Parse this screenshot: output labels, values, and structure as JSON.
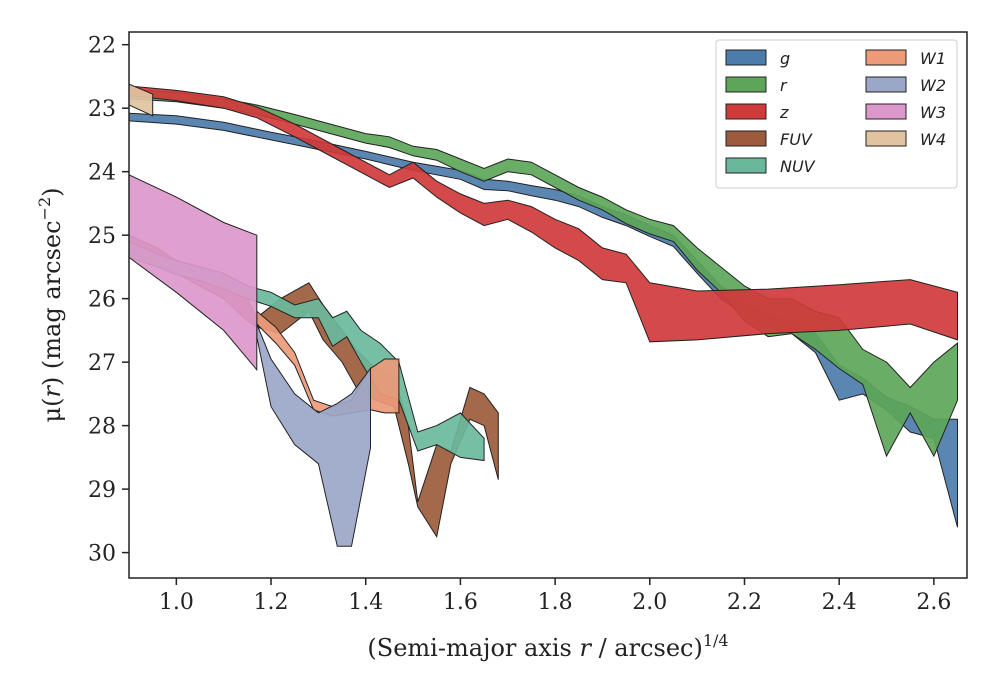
{
  "chart_data": {
    "type": "area",
    "title": "",
    "xlabel_main": "(Semi-major axis ",
    "xlabel_var": "r",
    "xlabel_rest": " / arcsec)",
    "xlabel_sup": "1/4",
    "ylabel_main": "μ(",
    "ylabel_var": "r",
    "ylabel_rest": ") (mag arcsec",
    "ylabel_sup": "−2",
    "ylabel_close": ")",
    "xlim": [
      0.9,
      2.67
    ],
    "ylim": [
      30.4,
      21.8
    ],
    "y_inverted": true,
    "x_ticks": [
      1.0,
      1.2,
      1.4,
      1.6,
      1.8,
      2.0,
      2.2,
      2.4,
      2.6
    ],
    "x_tick_labels": [
      "1.0",
      "1.2",
      "1.4",
      "1.6",
      "1.8",
      "2.0",
      "2.2",
      "2.4",
      "2.6"
    ],
    "y_ticks": [
      22,
      23,
      24,
      25,
      26,
      27,
      28,
      29,
      30
    ],
    "y_tick_labels": [
      "22",
      "23",
      "24",
      "25",
      "26",
      "27",
      "28",
      "29",
      "30"
    ],
    "grid": false,
    "legend_position": "top-right",
    "legend_columns": 2,
    "series": [
      {
        "name": "g",
        "color": "#4c7caa",
        "x": [
          0.9,
          1.0,
          1.1,
          1.2,
          1.3,
          1.4,
          1.5,
          1.6,
          1.65,
          1.7,
          1.75,
          1.8,
          1.85,
          1.9,
          1.95,
          2.0,
          2.05,
          2.1,
          2.15,
          2.2,
          2.25,
          2.3,
          2.35,
          2.4,
          2.45,
          2.5,
          2.55,
          2.6,
          2.65
        ],
        "lo": [
          23.08,
          23.12,
          23.22,
          23.38,
          23.52,
          23.68,
          23.85,
          23.98,
          24.12,
          24.15,
          24.22,
          24.28,
          24.38,
          24.55,
          24.68,
          24.85,
          25.0,
          25.4,
          25.8,
          26.05,
          26.25,
          26.35,
          26.55,
          27.05,
          27.25,
          27.55,
          27.7,
          27.9,
          27.9
        ],
        "hi": [
          23.2,
          23.25,
          23.35,
          23.5,
          23.65,
          23.8,
          23.98,
          24.12,
          24.28,
          24.3,
          24.38,
          24.45,
          24.55,
          24.72,
          24.85,
          25.02,
          25.18,
          25.6,
          26.0,
          26.25,
          26.45,
          26.55,
          26.85,
          27.6,
          27.5,
          27.75,
          28.1,
          28.2,
          29.6
        ]
      },
      {
        "name": "r",
        "color": "#5da659",
        "x": [
          0.9,
          1.0,
          1.1,
          1.17,
          1.25,
          1.3,
          1.4,
          1.45,
          1.5,
          1.55,
          1.6,
          1.65,
          1.7,
          1.75,
          1.8,
          1.85,
          1.9,
          1.95,
          2.0,
          2.05,
          2.1,
          2.15,
          2.2,
          2.25,
          2.3,
          2.35,
          2.4,
          2.45,
          2.5,
          2.55,
          2.6,
          2.65
        ],
        "lo": [
          22.7,
          22.75,
          22.85,
          22.95,
          23.1,
          23.2,
          23.4,
          23.45,
          23.6,
          23.65,
          23.8,
          23.95,
          23.8,
          23.85,
          24.05,
          24.25,
          24.4,
          24.6,
          24.75,
          24.85,
          25.2,
          25.5,
          25.8,
          26.0,
          26.0,
          26.2,
          26.3,
          26.8,
          27.0,
          27.4,
          27.0,
          26.7
        ],
        "hi": [
          22.85,
          22.9,
          23.0,
          23.1,
          23.25,
          23.35,
          23.55,
          23.62,
          23.75,
          23.82,
          24.0,
          24.15,
          24.0,
          24.05,
          24.25,
          24.45,
          24.6,
          24.82,
          24.98,
          25.1,
          25.55,
          25.9,
          26.35,
          26.6,
          26.55,
          26.8,
          27.1,
          27.35,
          28.48,
          27.8,
          28.48,
          27.6
        ]
      },
      {
        "name": "z",
        "color": "#d03a3a",
        "x": [
          0.9,
          1.0,
          1.1,
          1.17,
          1.25,
          1.3,
          1.35,
          1.4,
          1.45,
          1.5,
          1.55,
          1.6,
          1.65,
          1.7,
          1.75,
          1.8,
          1.85,
          1.9,
          1.95,
          2.0,
          2.1,
          2.25,
          2.4,
          2.55,
          2.65
        ],
        "lo": [
          22.65,
          22.72,
          22.82,
          22.98,
          23.25,
          23.45,
          23.65,
          23.85,
          24.05,
          23.85,
          24.15,
          24.35,
          24.5,
          24.45,
          24.55,
          24.75,
          24.9,
          25.2,
          25.3,
          25.75,
          25.88,
          25.85,
          25.78,
          25.7,
          25.9
        ],
        "hi": [
          22.8,
          22.88,
          23.0,
          23.15,
          23.45,
          23.65,
          23.85,
          24.05,
          24.25,
          24.1,
          24.4,
          24.65,
          24.85,
          24.75,
          24.95,
          25.2,
          25.4,
          25.7,
          25.75,
          26.68,
          26.65,
          26.55,
          26.5,
          26.4,
          26.65
        ]
      },
      {
        "name": "FUV",
        "color": "#9c5b3c",
        "x": [
          0.9,
          0.96,
          1.0,
          1.05,
          1.1,
          1.15,
          1.17,
          1.22,
          1.28,
          1.31,
          1.35,
          1.38,
          1.42,
          1.46,
          1.49,
          1.51,
          1.55,
          1.58,
          1.62,
          1.65,
          1.68
        ],
        "lo": [
          25.0,
          25.2,
          25.4,
          25.5,
          25.6,
          26.0,
          26.3,
          26.0,
          25.75,
          26.1,
          26.5,
          26.8,
          27.1,
          27.2,
          28.0,
          29.2,
          28.3,
          28.4,
          27.4,
          27.5,
          27.8
        ],
        "hi": [
          25.3,
          25.4,
          25.6,
          25.8,
          26.0,
          26.35,
          26.45,
          26.55,
          26.2,
          26.65,
          27.0,
          27.4,
          27.6,
          27.7,
          28.6,
          29.28,
          29.75,
          28.6,
          27.9,
          28.0,
          28.85
        ]
      },
      {
        "name": "NUV",
        "color": "#6ab89c",
        "x": [
          0.9,
          0.96,
          1.0,
          1.05,
          1.1,
          1.15,
          1.2,
          1.25,
          1.3,
          1.33,
          1.36,
          1.39,
          1.43,
          1.47,
          1.51,
          1.55,
          1.6,
          1.65
        ],
        "lo": [
          25.1,
          25.3,
          25.4,
          25.5,
          25.6,
          25.8,
          25.9,
          26.1,
          26.0,
          26.3,
          26.2,
          26.5,
          26.7,
          27.0,
          28.1,
          28.0,
          27.8,
          28.2
        ],
        "hi": [
          25.35,
          25.5,
          25.62,
          25.72,
          25.85,
          26.0,
          26.12,
          26.3,
          26.3,
          26.75,
          26.6,
          27.0,
          27.5,
          27.6,
          28.4,
          28.3,
          28.5,
          28.55
        ]
      },
      {
        "name": "W1",
        "color": "#ec9a78",
        "x": [
          1.17,
          1.21,
          1.25,
          1.29,
          1.33,
          1.37,
          1.41,
          1.44,
          1.47
        ],
        "lo": [
          26.2,
          26.45,
          26.85,
          27.6,
          27.7,
          27.6,
          27.1,
          26.95,
          26.95
        ],
        "hi": [
          26.4,
          26.7,
          27.05,
          27.75,
          27.85,
          27.8,
          27.75,
          27.8,
          27.8
        ]
      },
      {
        "name": "W2",
        "color": "#9aa7c8",
        "x": [
          1.17,
          1.2,
          1.25,
          1.3,
          1.34,
          1.37,
          1.41
        ],
        "lo": [
          26.4,
          26.95,
          27.5,
          27.8,
          27.65,
          27.5,
          27.1
        ],
        "hi": [
          26.6,
          27.7,
          28.3,
          28.6,
          29.9,
          29.9,
          28.35
        ]
      },
      {
        "name": "W3",
        "color": "#dd98cb",
        "x": [
          0.9,
          1.0,
          1.1,
          1.17
        ],
        "lo": [
          24.05,
          24.4,
          24.8,
          25.0
        ],
        "hi": [
          25.35,
          25.9,
          26.5,
          27.12
        ]
      },
      {
        "name": "W4",
        "color": "#e1c3a0",
        "x": [
          0.9,
          0.95
        ],
        "lo": [
          22.62,
          22.78
        ],
        "hi": [
          22.95,
          23.12
        ]
      }
    ]
  }
}
